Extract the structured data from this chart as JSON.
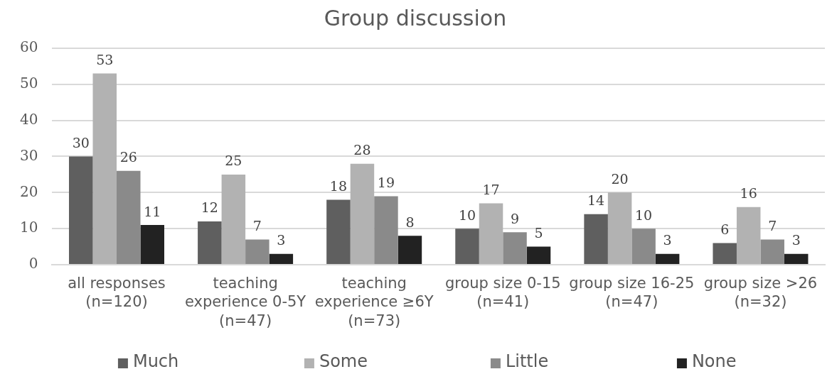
{
  "chart_data": {
    "type": "bar",
    "title": "Group discussion",
    "categories": [
      "all responses (n=120)",
      "teaching experience 0-5Y (n=47)",
      "teaching experience ≥6Y (n=73)",
      "group size 0-15 (n=41)",
      "group size 16-25 (n=47)",
      "group size >26 (n=32)"
    ],
    "series": [
      {
        "name": "Much",
        "color": "#5f5f5f",
        "values": [
          30,
          12,
          18,
          10,
          14,
          6
        ]
      },
      {
        "name": "Some",
        "color": "#b2b2b2",
        "values": [
          53,
          25,
          28,
          17,
          20,
          16
        ]
      },
      {
        "name": "Little",
        "color": "#8a8a8a",
        "values": [
          26,
          7,
          19,
          9,
          10,
          7
        ]
      },
      {
        "name": "None",
        "color": "#222222",
        "values": [
          11,
          3,
          8,
          5,
          3,
          3
        ]
      }
    ],
    "ylim": [
      0,
      60
    ],
    "yticks": [
      0,
      10,
      20,
      30,
      40,
      50,
      60
    ],
    "grid": "y",
    "legend": "bottom",
    "data_labels": true
  }
}
